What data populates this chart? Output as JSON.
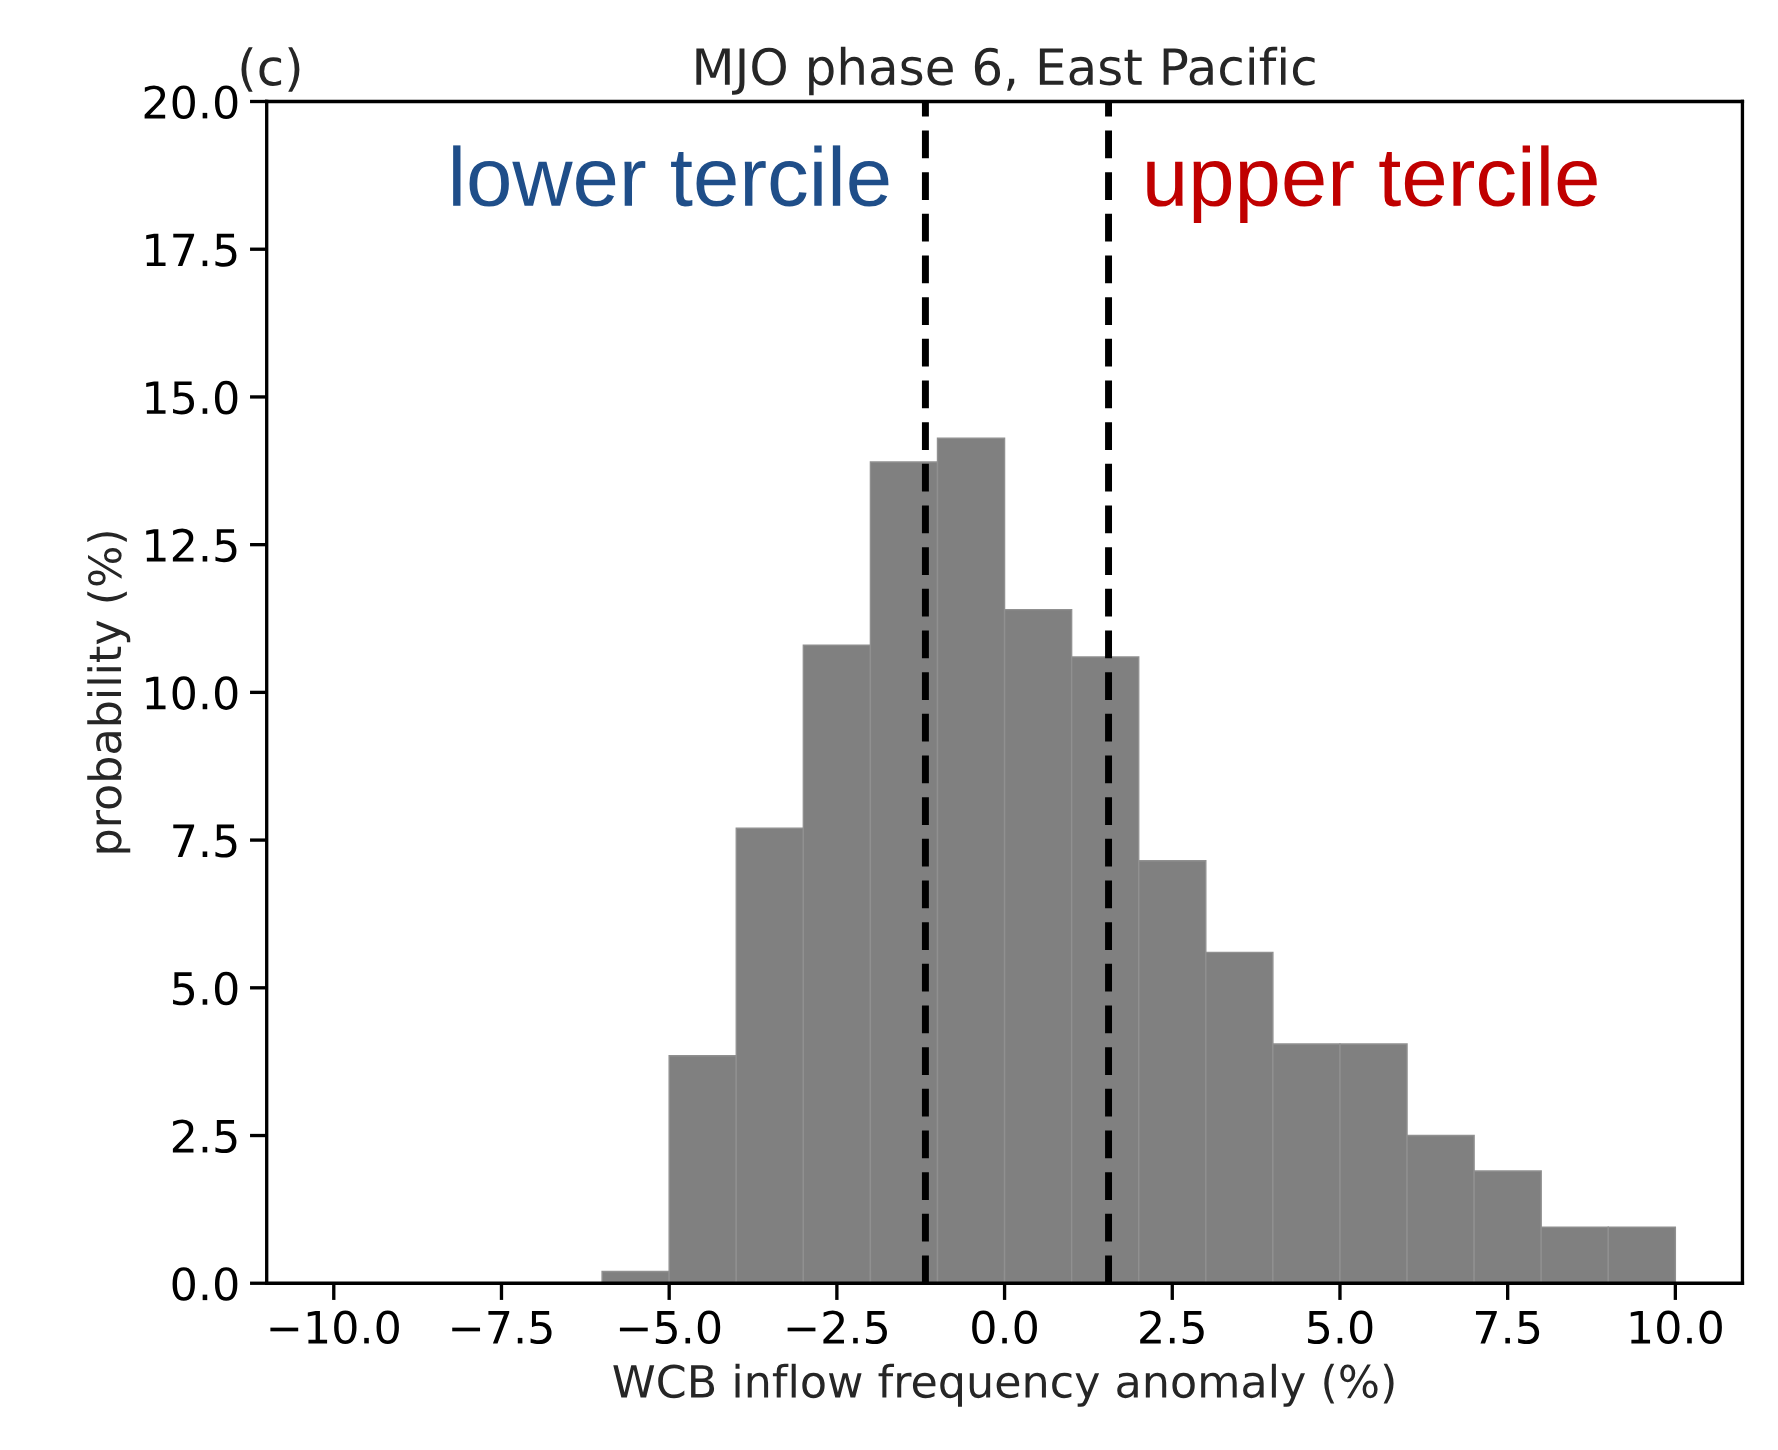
{
  "chart_data": {
    "type": "histogram",
    "title": "MJO phase 6, East Pacific",
    "xlabel": "WCB inflow frequency anomaly (%)",
    "ylabel": "probability (%)",
    "bins": [
      -6,
      -5,
      -4,
      -3,
      -2,
      -1,
      0,
      1,
      2,
      3,
      4,
      5,
      6,
      7,
      8,
      9,
      10
    ],
    "values": [
      0.2,
      3.85,
      7.7,
      10.8,
      13.9,
      14.3,
      11.4,
      10.6,
      7.15,
      5.6,
      4.05,
      4.05,
      2.5,
      1.9,
      0.95,
      0.95
    ],
    "color": "#808080",
    "xlim": [
      -11,
      11
    ],
    "xticks": [
      {
        "value": -10,
        "label": "−10.0"
      },
      {
        "value": -7.5,
        "label": "−7.5"
      },
      {
        "value": -5,
        "label": "−5.0"
      },
      {
        "value": -2.5,
        "label": "−2.5"
      },
      {
        "value": 0,
        "label": "0.0"
      },
      {
        "value": 2.5,
        "label": "2.5"
      },
      {
        "value": 5,
        "label": "5.0"
      },
      {
        "value": 7.5,
        "label": "7.5"
      },
      {
        "value": 10,
        "label": "10.0"
      }
    ],
    "ylim": [
      0,
      20
    ],
    "yticks": [
      {
        "value": 0,
        "label": "0.0"
      },
      {
        "value": 2.5,
        "label": "2.5"
      },
      {
        "value": 5,
        "label": "5.0"
      },
      {
        "value": 7.5,
        "label": "7.5"
      },
      {
        "value": 10,
        "label": "10.0"
      },
      {
        "value": 12.5,
        "label": "12.5"
      },
      {
        "value": 15,
        "label": "15.0"
      },
      {
        "value": 17.5,
        "label": "17.5"
      },
      {
        "value": 20,
        "label": "20.0"
      }
    ],
    "ref_lines": [
      {
        "axis": "x",
        "value": -1.18,
        "label": "lower tercile",
        "color": "#000000",
        "line_style": "dashed"
      },
      {
        "axis": "x",
        "value": 1.55,
        "label": "upper tercile",
        "color": "#000000",
        "line_style": "dashed"
      }
    ],
    "annotations": [
      "(c)"
    ],
    "grid": false
  }
}
